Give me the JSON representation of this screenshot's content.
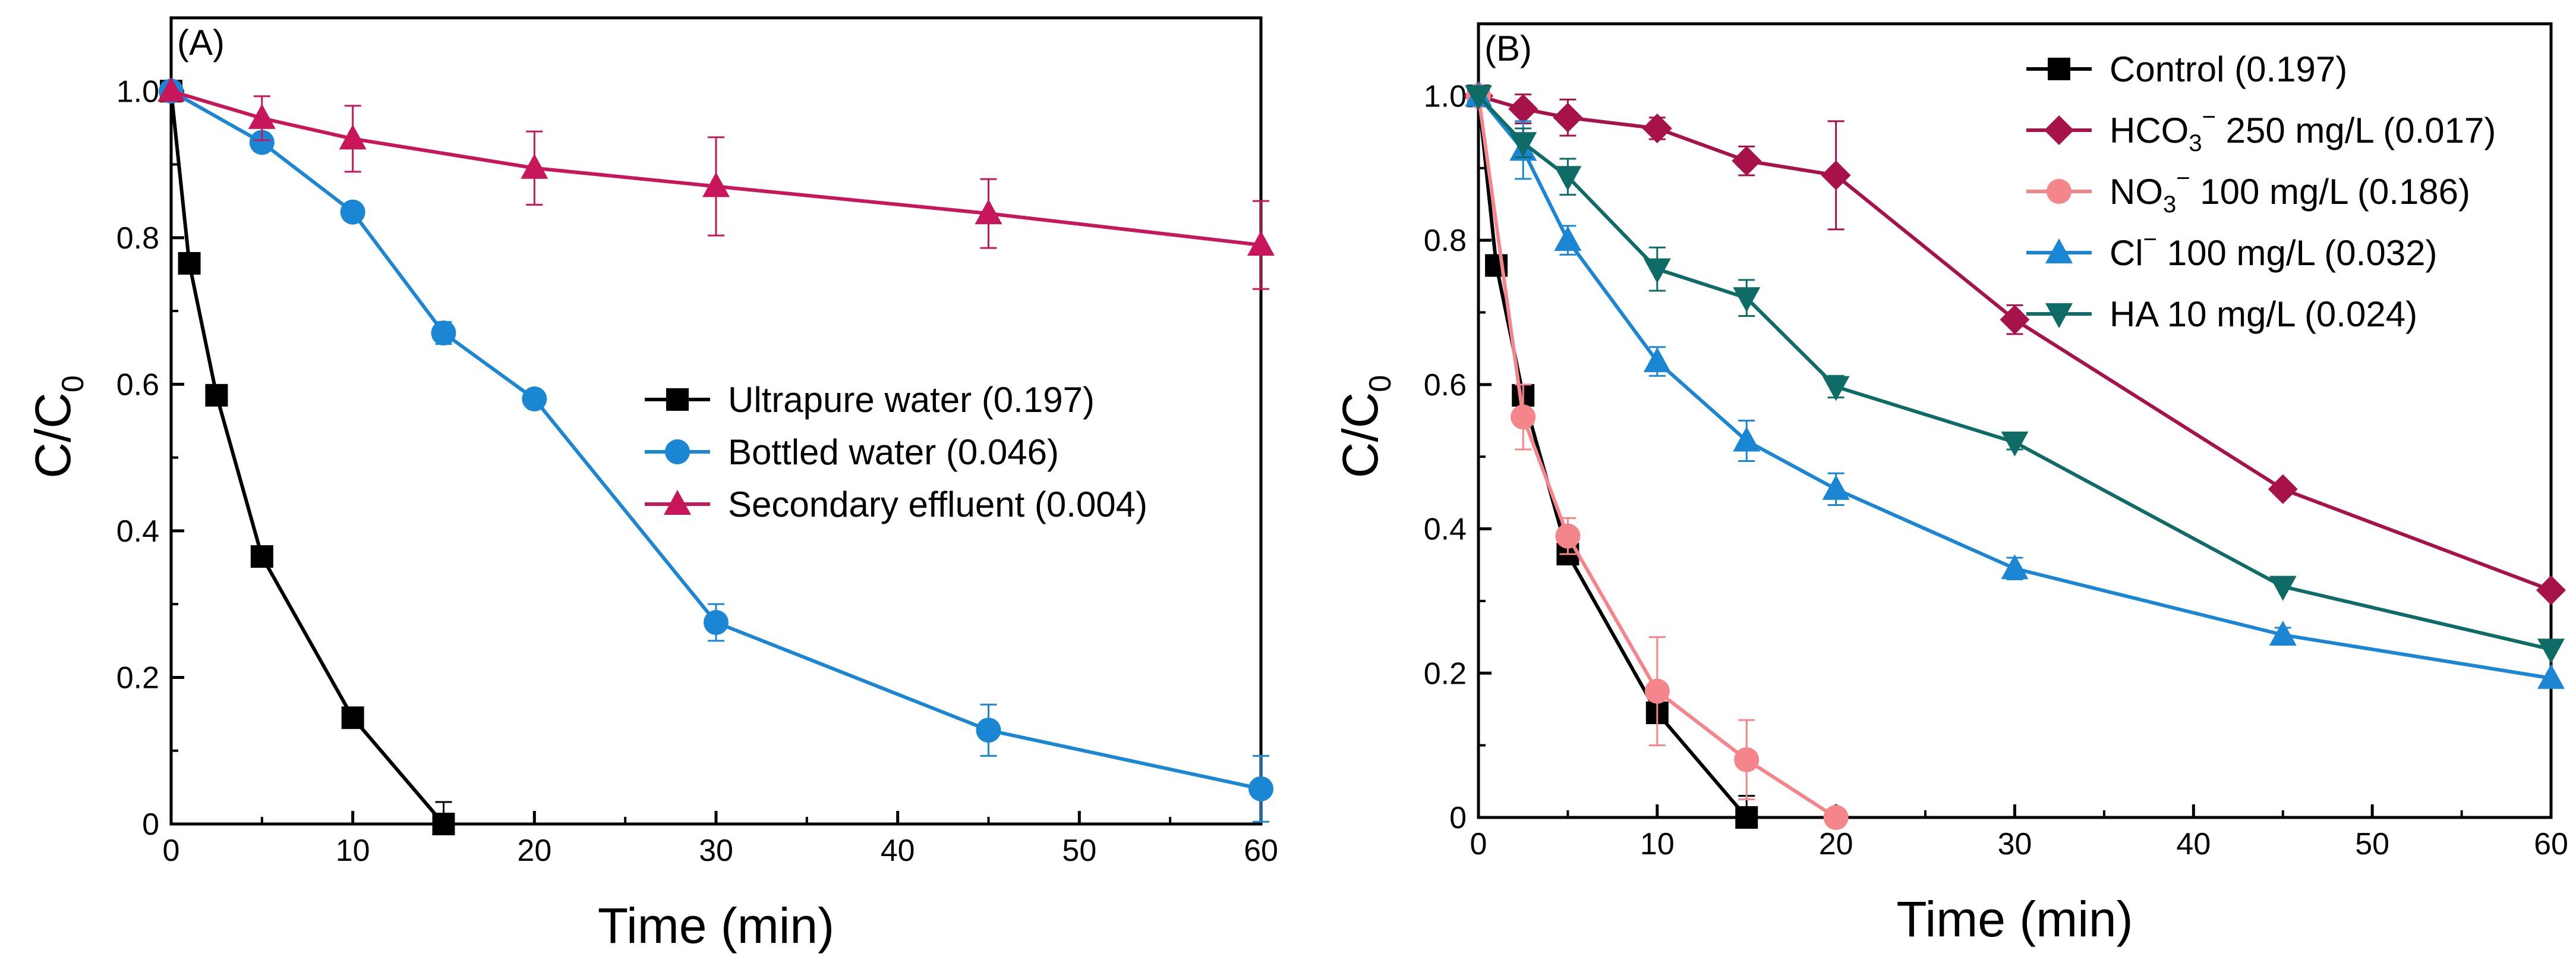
{
  "chart_data": [
    {
      "type": "line",
      "panel_label": "(A)",
      "xlabel": "Time (min)",
      "ylabel": "C/C",
      "ylabel_sub": "0",
      "xlim": [
        0,
        60
      ],
      "ylim": [
        0,
        1.1
      ],
      "xticks": [
        0,
        10,
        20,
        30,
        40,
        50,
        60
      ],
      "xtick_labels": [
        "0",
        "10",
        "20",
        "30",
        "40",
        "50",
        "60"
      ],
      "yticks": [
        0,
        0.2,
        0.4,
        0.6,
        0.8,
        1.0
      ],
      "ytick_labels": [
        "0",
        "0.2",
        "0.4",
        "0.6",
        "0.8",
        "1.0"
      ],
      "legend_position": "center-right",
      "series": [
        {
          "name": "Ultrapure water (0.197)",
          "label": "Ultrapure water (0.197)",
          "color": "#000000",
          "marker": "square",
          "x": [
            0,
            1,
            2.5,
            5,
            10,
            15
          ],
          "y": [
            1.0,
            0.765,
            0.585,
            0.365,
            0.145,
            0.0
          ],
          "err": [
            0,
            0,
            0,
            0,
            0,
            0.03
          ]
        },
        {
          "name": "Bottled water (0.046)",
          "label": "Bottled water (0.046)",
          "color": "#1a86d4",
          "marker": "circle",
          "x": [
            0,
            5,
            10,
            15,
            20,
            30,
            45,
            60
          ],
          "y": [
            1.0,
            0.93,
            0.835,
            0.67,
            0.58,
            0.275,
            0.128,
            0.048
          ],
          "err": [
            0,
            0,
            0,
            0.015,
            0,
            0.025,
            0.035,
            0.045
          ]
        },
        {
          "name": "Secondary effluent (0.004)",
          "label": "Secondary effluent (0.004)",
          "color": "#c8165a",
          "marker": "triangle-up",
          "x": [
            0,
            5,
            10,
            20,
            30,
            45,
            60
          ],
          "y": [
            1.0,
            0.963,
            0.935,
            0.895,
            0.87,
            0.833,
            0.79
          ],
          "err": [
            0,
            0.03,
            0.045,
            0.05,
            0.067,
            0.047,
            0.06
          ]
        }
      ]
    },
    {
      "type": "line",
      "panel_label": "(B)",
      "xlabel": "Time (min)",
      "ylabel": "C/C",
      "ylabel_sub": "0",
      "xlim": [
        0,
        60
      ],
      "ylim": [
        0,
        1.1
      ],
      "xticks": [
        0,
        10,
        20,
        30,
        40,
        50,
        60
      ],
      "xtick_labels": [
        "0",
        "10",
        "20",
        "30",
        "40",
        "50",
        "60"
      ],
      "yticks": [
        0,
        0.2,
        0.4,
        0.6,
        0.8,
        1.0
      ],
      "ytick_labels": [
        "0",
        "0.2",
        "0.4",
        "0.6",
        "0.8",
        "1.0"
      ],
      "legend_position": "top-right",
      "series": [
        {
          "name": "Control (0.197)",
          "label": "Control (0.197)",
          "color": "#000000",
          "marker": "square",
          "x": [
            0,
            1,
            2.5,
            5,
            10,
            15
          ],
          "y": [
            1.0,
            0.765,
            0.585,
            0.365,
            0.145,
            0.0
          ],
          "err": [
            0,
            0,
            0,
            0,
            0,
            0.03
          ]
        },
        {
          "name": "HCO3- 250 mg/L (0.017)",
          "label_parts": [
            "HCO",
            "3",
            "−",
            " 250 mg/L (0.017)"
          ],
          "color": "#a8124a",
          "marker": "diamond",
          "x": [
            0,
            2.5,
            5,
            10,
            15,
            20,
            30,
            45,
            60
          ],
          "y": [
            1.0,
            0.982,
            0.97,
            0.955,
            0.91,
            0.89,
            0.69,
            0.455,
            0.315
          ],
          "err": [
            0,
            0.02,
            0.025,
            0.015,
            0.02,
            0.075,
            0.02,
            0,
            0
          ]
        },
        {
          "name": "NO3- 100 mg/L (0.186)",
          "label_parts": [
            "NO",
            "3",
            "−",
            " 100 mg/L (0.186)"
          ],
          "color": "#f4858a",
          "marker": "circle",
          "x": [
            0,
            2.5,
            5,
            10,
            15,
            20
          ],
          "y": [
            1.0,
            0.555,
            0.39,
            0.175,
            0.08,
            0.0
          ],
          "err": [
            0,
            0.045,
            0.025,
            0.075,
            0.055,
            0.01
          ]
        },
        {
          "name": "Cl- 100 mg/L (0.032)",
          "label_parts": [
            "Cl",
            "",
            "−",
            "  100 mg/L (0.032)"
          ],
          "color": "#1a86d4",
          "marker": "triangle-up",
          "x": [
            0,
            2.5,
            5,
            10,
            15,
            20,
            30,
            45,
            60
          ],
          "y": [
            1.0,
            0.925,
            0.8,
            0.632,
            0.522,
            0.455,
            0.345,
            0.253,
            0.193
          ],
          "err": [
            0,
            0.04,
            0.02,
            0.02,
            0.028,
            0.022,
            0.015,
            0.01,
            0
          ]
        },
        {
          "name": "HA 10 mg/L (0.024)",
          "label": "HA 10 mg/L (0.024)",
          "color": "#0e6b66",
          "marker": "triangle-down",
          "x": [
            0,
            2.5,
            5,
            10,
            15,
            20,
            30,
            45,
            60
          ],
          "y": [
            1.0,
            0.935,
            0.888,
            0.76,
            0.72,
            0.597,
            0.52,
            0.32,
            0.233
          ],
          "err": [
            0,
            0.02,
            0.025,
            0.03,
            0.025,
            0.015,
            0.01,
            0,
            0
          ]
        }
      ]
    }
  ]
}
